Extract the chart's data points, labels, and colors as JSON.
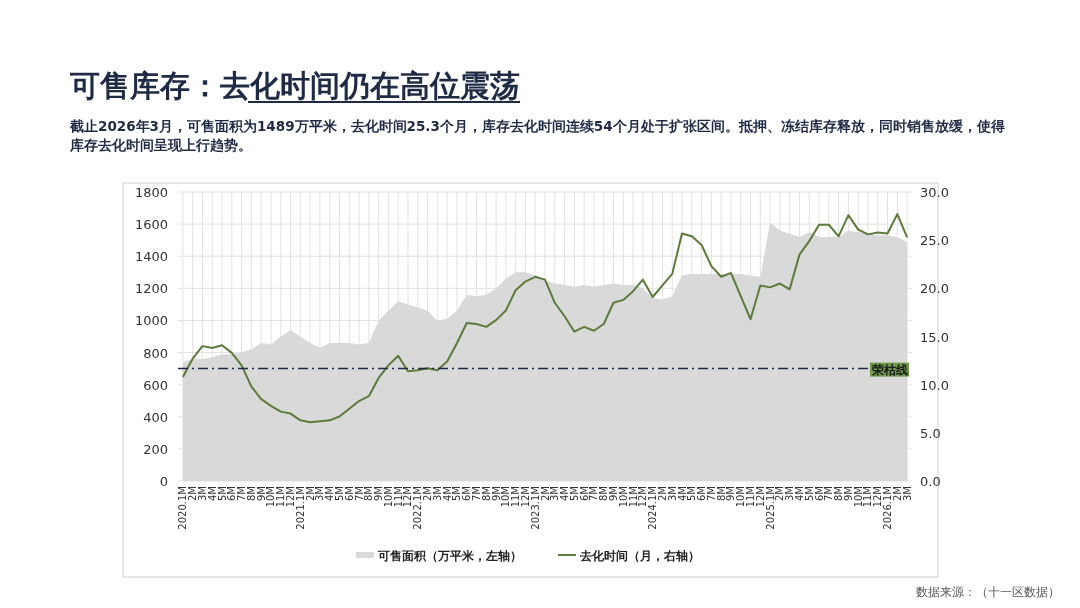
{
  "chart_data": {
    "type": "line",
    "title": "可售库存：去化时间仍在高位震荡",
    "subtitle": "截止2026年3月，可售面积为1489万平米，去化时间25.3个月，库存去化时间连续54个月处于扩张区间。抵押、冻结库存释放，同时销售放缓，使得库存去化时间呈现上行趋势。",
    "categories": [
      "2020.1M",
      "2M",
      "3M",
      "4M",
      "5M",
      "6M",
      "7M",
      "8M",
      "9M",
      "10M",
      "11M",
      "12M",
      "2021.1M",
      "2M",
      "3M",
      "4M",
      "5M",
      "6M",
      "7M",
      "8M",
      "9M",
      "10M",
      "11M",
      "12M",
      "2022.1M",
      "2M",
      "3M",
      "4M",
      "5M",
      "6M",
      "7M",
      "8M",
      "9M",
      "10M",
      "11M",
      "12M",
      "2023.1M",
      "2M",
      "3M",
      "4M",
      "5M",
      "6M",
      "7M",
      "8M",
      "9M",
      "10M",
      "11M",
      "12M",
      "2024.1M",
      "2M",
      "3M",
      "4M",
      "5M",
      "6M",
      "7M",
      "8M",
      "9M",
      "10M",
      "11M",
      "12M",
      "2025.1M",
      "2M",
      "3M",
      "4M",
      "5M",
      "6M",
      "7M",
      "8M",
      "9M",
      "10M",
      "11M",
      "12M",
      "2026.1M",
      "2M",
      "3M"
    ],
    "series": [
      {
        "name": "可售面积（万平米，左轴）",
        "type": "area",
        "color": "#d9d9d9",
        "values": [
          740,
          760,
          760,
          770,
          790,
          790,
          800,
          820,
          860,
          850,
          900,
          940,
          900,
          860,
          830,
          860,
          860,
          860,
          850,
          860,
          1000,
          1060,
          1120,
          1100,
          1080,
          1060,
          1000,
          1010,
          1060,
          1160,
          1150,
          1160,
          1200,
          1260,
          1300,
          1300,
          1280,
          1250,
          1230,
          1220,
          1210,
          1220,
          1210,
          1220,
          1230,
          1220,
          1220,
          1200,
          1140,
          1130,
          1150,
          1280,
          1290,
          1290,
          1290,
          1290,
          1290,
          1290,
          1280,
          1270,
          1610,
          1560,
          1540,
          1520,
          1550,
          1520,
          1520,
          1520,
          1560,
          1550,
          1540,
          1530,
          1530,
          1520,
          1489
        ]
      },
      {
        "name": "去化时间（月，右轴）",
        "axis": "y2",
        "color": "#5b7b3a",
        "values": [
          10.8,
          12.7,
          14.0,
          13.8,
          14.1,
          13.3,
          12.0,
          9.8,
          8.5,
          7.8,
          7.2,
          7.0,
          6.3,
          6.1,
          6.2,
          6.3,
          6.7,
          7.5,
          8.3,
          8.8,
          10.7,
          12.0,
          13.0,
          11.4,
          11.5,
          11.7,
          11.5,
          12.4,
          14.3,
          16.4,
          16.3,
          16.0,
          16.7,
          17.7,
          19.8,
          20.7,
          21.2,
          20.9,
          18.5,
          17.1,
          15.5,
          16.0,
          15.6,
          16.3,
          18.5,
          18.8,
          19.7,
          20.9,
          19.1,
          20.3,
          21.5,
          25.7,
          25.4,
          24.5,
          22.3,
          21.2,
          21.6,
          19.2,
          16.8,
          20.3,
          20.1,
          20.5,
          19.9,
          23.5,
          24.9,
          26.6,
          26.6,
          25.4,
          27.6,
          26.1,
          25.6,
          25.8,
          25.7,
          27.7,
          25.3
        ]
      }
    ],
    "ylim": [
      0,
      1800
    ],
    "yticks": [
      0,
      200,
      400,
      600,
      800,
      1000,
      1200,
      1400,
      1600,
      1800
    ],
    "y2lim": [
      0,
      30
    ],
    "y2ticks": [
      {
        "value": 0,
        "label": "0.0"
      },
      {
        "value": 5,
        "label": "5.0"
      },
      {
        "value": 10,
        "label": "10.0"
      },
      {
        "value": 15,
        "label": "15.0"
      },
      {
        "value": 20,
        "label": "20.0"
      },
      {
        "value": 25,
        "label": "25.0"
      },
      {
        "value": 30,
        "label": "30.0"
      }
    ],
    "ref_lines": [
      {
        "axis": "y",
        "value": 700,
        "label": "荣枯线",
        "color": "#1f2a44",
        "line_style": "dashdot"
      }
    ],
    "grid": true,
    "legend": "bottom",
    "annotations": [
      "数据来源：（十一区数据）"
    ]
  }
}
